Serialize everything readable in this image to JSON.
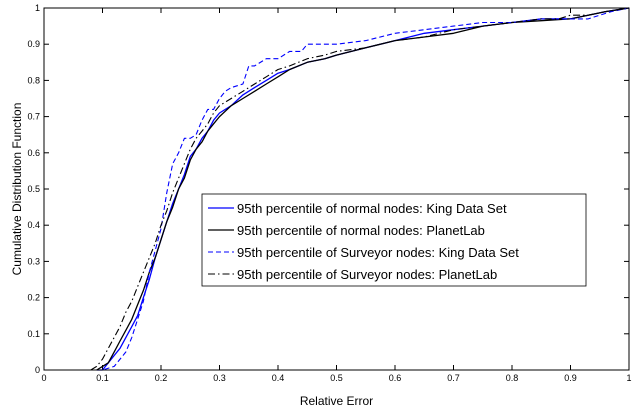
{
  "chart_data": {
    "type": "line",
    "title": "",
    "xlabel": "Relative Error",
    "ylabel": "Cumulative Distribution Function",
    "xlim": [
      0,
      1
    ],
    "ylim": [
      0,
      1
    ],
    "xticks": [
      "0",
      "0.1",
      "0.2",
      "0.3",
      "0.4",
      "0.5",
      "0.6",
      "0.7",
      "0.8",
      "0.9",
      "1"
    ],
    "yticks": [
      "0",
      "0.1",
      "0.2",
      "0.3",
      "0.4",
      "0.5",
      "0.6",
      "0.7",
      "0.8",
      "0.9",
      "1"
    ],
    "grid": false,
    "legend_position": "center-right",
    "series": [
      {
        "name": "95th percentile of normal nodes: King Data Set",
        "color": "#0000ff",
        "dash": "solid",
        "x": [
          0.09,
          0.1,
          0.11,
          0.12,
          0.13,
          0.14,
          0.15,
          0.16,
          0.17,
          0.18,
          0.19,
          0.2,
          0.21,
          0.22,
          0.23,
          0.24,
          0.25,
          0.26,
          0.27,
          0.28,
          0.29,
          0.3,
          0.32,
          0.34,
          0.36,
          0.38,
          0.4,
          0.42,
          0.45,
          0.48,
          0.5,
          0.55,
          0.6,
          0.65,
          0.7,
          0.75,
          0.8,
          0.85,
          0.9,
          0.93,
          0.96,
          0.98,
          1.0
        ],
        "y": [
          0.0,
          0.0,
          0.02,
          0.04,
          0.06,
          0.09,
          0.12,
          0.15,
          0.2,
          0.25,
          0.31,
          0.36,
          0.41,
          0.46,
          0.5,
          0.54,
          0.59,
          0.61,
          0.64,
          0.66,
          0.69,
          0.71,
          0.73,
          0.76,
          0.78,
          0.8,
          0.82,
          0.83,
          0.85,
          0.86,
          0.87,
          0.89,
          0.91,
          0.93,
          0.94,
          0.95,
          0.96,
          0.97,
          0.97,
          0.98,
          0.99,
          0.995,
          1.0
        ]
      },
      {
        "name": "95th percentile of normal nodes: PlanetLab",
        "color": "#000000",
        "dash": "solid",
        "x": [
          0.09,
          0.1,
          0.11,
          0.12,
          0.13,
          0.14,
          0.15,
          0.16,
          0.17,
          0.18,
          0.19,
          0.2,
          0.21,
          0.22,
          0.23,
          0.24,
          0.25,
          0.26,
          0.27,
          0.28,
          0.29,
          0.3,
          0.32,
          0.34,
          0.36,
          0.38,
          0.4,
          0.42,
          0.45,
          0.48,
          0.5,
          0.55,
          0.6,
          0.65,
          0.7,
          0.75,
          0.8,
          0.85,
          0.9,
          0.93,
          0.96,
          0.98,
          1.0
        ],
        "y": [
          0.0,
          0.01,
          0.02,
          0.05,
          0.08,
          0.11,
          0.14,
          0.18,
          0.22,
          0.27,
          0.31,
          0.36,
          0.41,
          0.45,
          0.5,
          0.53,
          0.58,
          0.61,
          0.63,
          0.66,
          0.68,
          0.7,
          0.73,
          0.75,
          0.77,
          0.79,
          0.81,
          0.83,
          0.85,
          0.86,
          0.87,
          0.89,
          0.91,
          0.92,
          0.93,
          0.95,
          0.96,
          0.965,
          0.97,
          0.98,
          0.99,
          0.995,
          1.0
        ]
      },
      {
        "name": "95th percentile of Surveyor nodes: King Data Set",
        "color": "#0000ff",
        "dash": "dashed",
        "x": [
          0.09,
          0.1,
          0.12,
          0.14,
          0.15,
          0.16,
          0.17,
          0.18,
          0.19,
          0.2,
          0.21,
          0.22,
          0.23,
          0.24,
          0.25,
          0.26,
          0.27,
          0.28,
          0.29,
          0.3,
          0.31,
          0.32,
          0.34,
          0.35,
          0.36,
          0.38,
          0.4,
          0.42,
          0.44,
          0.45,
          0.47,
          0.5,
          0.55,
          0.6,
          0.65,
          0.7,
          0.75,
          0.8,
          0.85,
          0.9,
          0.93,
          0.95,
          0.97,
          1.0
        ],
        "y": [
          0.0,
          0.0,
          0.01,
          0.05,
          0.09,
          0.14,
          0.19,
          0.27,
          0.33,
          0.39,
          0.49,
          0.57,
          0.6,
          0.64,
          0.64,
          0.65,
          0.69,
          0.72,
          0.72,
          0.75,
          0.77,
          0.78,
          0.79,
          0.84,
          0.84,
          0.86,
          0.86,
          0.88,
          0.88,
          0.9,
          0.9,
          0.9,
          0.91,
          0.93,
          0.94,
          0.95,
          0.96,
          0.96,
          0.97,
          0.97,
          0.97,
          0.98,
          0.99,
          1.0
        ]
      },
      {
        "name": "95th percentile of Surveyor nodes: PlanetLab",
        "color": "#000000",
        "dash": "dashdot",
        "x": [
          0.08,
          0.09,
          0.1,
          0.11,
          0.12,
          0.13,
          0.14,
          0.15,
          0.16,
          0.17,
          0.18,
          0.19,
          0.2,
          0.21,
          0.22,
          0.23,
          0.24,
          0.25,
          0.26,
          0.27,
          0.28,
          0.29,
          0.3,
          0.32,
          0.34,
          0.36,
          0.38,
          0.4,
          0.42,
          0.45,
          0.48,
          0.5,
          0.55,
          0.6,
          0.65,
          0.7,
          0.75,
          0.8,
          0.85,
          0.88,
          0.9,
          0.93,
          0.96,
          0.98,
          1.0
        ],
        "y": [
          0.0,
          0.01,
          0.03,
          0.06,
          0.09,
          0.12,
          0.16,
          0.19,
          0.23,
          0.27,
          0.31,
          0.35,
          0.4,
          0.44,
          0.49,
          0.53,
          0.57,
          0.61,
          0.64,
          0.66,
          0.68,
          0.71,
          0.73,
          0.75,
          0.77,
          0.79,
          0.81,
          0.83,
          0.84,
          0.86,
          0.87,
          0.88,
          0.89,
          0.91,
          0.92,
          0.94,
          0.95,
          0.96,
          0.97,
          0.97,
          0.98,
          0.98,
          0.99,
          0.995,
          1.0
        ]
      }
    ]
  }
}
